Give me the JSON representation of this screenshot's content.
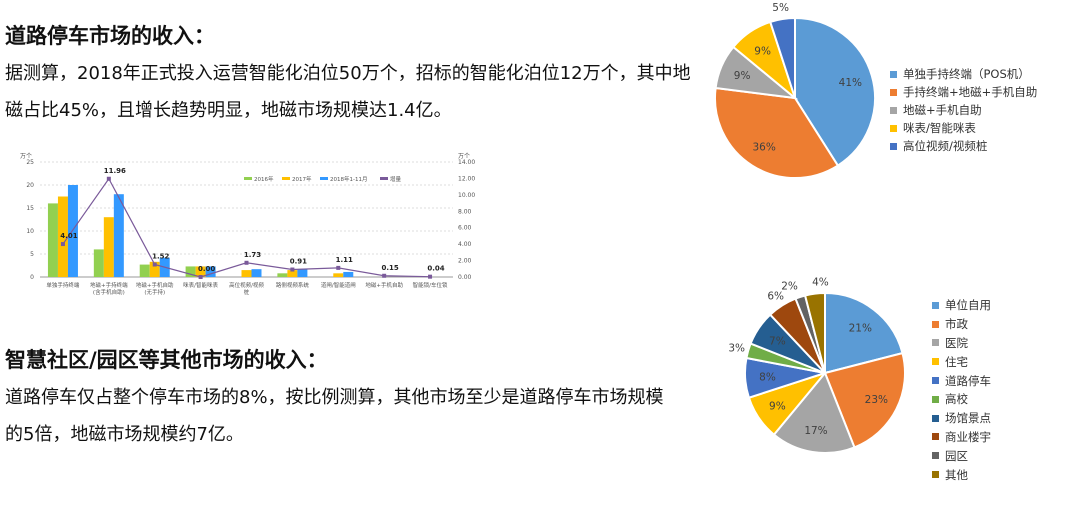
{
  "section1": {
    "title": "道路停车市场的收入：",
    "paragraph": "据测算，2018年正式投入运营智能化泊位50万个，招标的智能化泊位12万个，其中地磁占比45%，且增长趋势明显，地磁市场规模达1.4亿。"
  },
  "section2": {
    "title": "智慧社区/园区等其他市场的收入：",
    "paragraph": "道路停车仅占整个停车市场的8%，按比例测算，其他市场至少是道路停车市场规模的5倍，地磁市场规模约7亿。"
  },
  "chart_data": [
    {
      "type": "bar",
      "ylabel": "万个",
      "y2label": "万个",
      "ylim": [
        0,
        25
      ],
      "y2lim": [
        0,
        14
      ],
      "yticks": [
        "0",
        "5",
        "10",
        "15",
        "20",
        "25"
      ],
      "y2ticks": [
        "0.00",
        "2.00",
        "4.00",
        "6.00",
        "8.00",
        "10.00",
        "12.00",
        "14.00"
      ],
      "categories": [
        "单独手持终端",
        "地磁+手持终端(含手机自助)",
        "地磁+手机自助(无手持)",
        "咪表/智能咪表",
        "高位视频/视频桩",
        "路侧视频系统",
        "道闸/智能道闸",
        "地磁+手机自助",
        "智能锁/车位锁"
      ],
      "series": [
        {
          "name": "2016年",
          "color": "#92d050",
          "values": [
            16,
            6,
            2.7,
            2.3,
            0,
            0.8,
            0,
            0,
            0
          ]
        },
        {
          "name": "2017年",
          "color": "#ffc000",
          "values": [
            17.5,
            13,
            3.3,
            2.3,
            1.5,
            1.5,
            0.8,
            0,
            0
          ]
        },
        {
          "name": "2018年1-11月",
          "color": "#3399ff",
          "values": [
            20,
            18,
            4.2,
            2.3,
            1.7,
            1.7,
            1.1,
            0,
            0
          ]
        },
        {
          "name": "增量",
          "color": "#7a5a9a",
          "axis": "right",
          "type": "line",
          "values": [
            4.01,
            11.96,
            1.52,
            0.0,
            1.73,
            0.91,
            1.11,
            0.15,
            0.04
          ],
          "labels": [
            "4.01",
            "11.96",
            "1.52",
            "0.00",
            "1.73",
            "0.91",
            "1.11",
            "0.15",
            "0.04"
          ]
        }
      ]
    },
    {
      "type": "pie",
      "labels": [
        "单独手持终端（POS机）",
        "手持终端+地磁+手机自助",
        "地磁+手机自助",
        "咪表/智能咪表",
        "高位视频/视频桩"
      ],
      "values": [
        41,
        36,
        9,
        9,
        5
      ],
      "colors": [
        "#5b9bd5",
        "#ed7d31",
        "#a5a5a5",
        "#ffc000",
        "#4472c4"
      ],
      "legend": "right"
    },
    {
      "type": "pie",
      "labels": [
        "单位自用",
        "市政",
        "医院",
        "住宅",
        "道路停车",
        "高校",
        "场馆景点",
        "商业楼宇",
        "园区",
        "其他"
      ],
      "values": [
        21,
        23,
        17,
        9,
        8,
        3,
        7,
        6,
        2,
        4
      ],
      "colors": [
        "#5b9bd5",
        "#ed7d31",
        "#a5a5a5",
        "#ffc000",
        "#4472c4",
        "#70ad47",
        "#255e91",
        "#9e480e",
        "#636363",
        "#997300"
      ],
      "legend": "right"
    }
  ]
}
